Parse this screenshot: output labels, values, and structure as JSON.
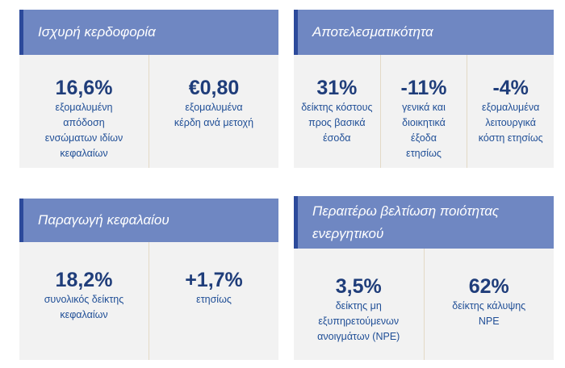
{
  "panels": [
    {
      "title": [
        "Ισχυρή κερδοφορία"
      ],
      "metrics": [
        {
          "value": "16,6%",
          "label": [
            "εξομαλυμένη",
            "απόδοση",
            "ενσώματων ιδίων",
            "κεφαλαίων"
          ]
        },
        {
          "value": "€0,80",
          "label": [
            "εξομαλυμένα",
            "κέρδη ανά μετοχή"
          ]
        }
      ]
    },
    {
      "title": [
        "Αποτελεσματικότητα"
      ],
      "metrics": [
        {
          "value": "31%",
          "label": [
            "δείκτης κόστους",
            "προς βασικά",
            "έσοδα"
          ]
        },
        {
          "value": "-11%",
          "label": [
            "γενικά και",
            "διοικητικά",
            "έξοδα",
            "ετησίως"
          ]
        },
        {
          "value": "-4%",
          "label": [
            "εξομαλυμένα",
            "λειτουργικά",
            "κόστη ετησίως"
          ]
        }
      ]
    },
    {
      "title": [
        "Παραγωγή κεφαλαίου"
      ],
      "metrics": [
        {
          "value": "18,2%",
          "label": [
            "συνολικός δείκτης",
            "κεφαλαίων"
          ]
        },
        {
          "value": "+1,7%",
          "label": [
            "ετησίως"
          ]
        }
      ]
    },
    {
      "title": [
        "Περαιτέρω βελτίωση ποιότητας",
        "ενεργητικού"
      ],
      "metrics": [
        {
          "value": "3,5%",
          "label": [
            "δείκτης μη",
            "εξυπηρετούμενων",
            "ανοιγμάτων (NPE)"
          ]
        },
        {
          "value": "62%",
          "label": [
            "δείκτης κάλυψης",
            "NPE"
          ]
        }
      ]
    }
  ]
}
